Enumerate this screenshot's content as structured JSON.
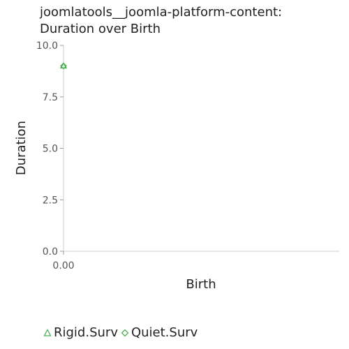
{
  "chart_data": {
    "type": "scatter",
    "title_lines": [
      "joomlatools__joomla-platform-content:",
      "Duration over Birth"
    ],
    "xlabel": "Birth",
    "ylabel": "Duration",
    "xlim": [
      0,
      1
    ],
    "ylim": [
      0,
      10
    ],
    "x_ticks": [
      {
        "value": 0,
        "label": "0.00"
      }
    ],
    "y_ticks": [
      {
        "value": 0,
        "label": "0.0"
      },
      {
        "value": 2.5,
        "label": "2.5"
      },
      {
        "value": 5,
        "label": "5.0"
      },
      {
        "value": 7.5,
        "label": "7.5"
      },
      {
        "value": 10,
        "label": "10.0"
      }
    ],
    "grid": false,
    "legend_position": "bottom-left",
    "series": [
      {
        "name": "Rigid.Surv",
        "marker": "triangle",
        "color": "#4caf50",
        "points": [
          {
            "x": 0,
            "y": 9
          }
        ]
      },
      {
        "name": "Quiet.Surv",
        "marker": "diamond",
        "color": "#4caf50",
        "points": [
          {
            "x": 0,
            "y": 9
          }
        ]
      }
    ]
  }
}
